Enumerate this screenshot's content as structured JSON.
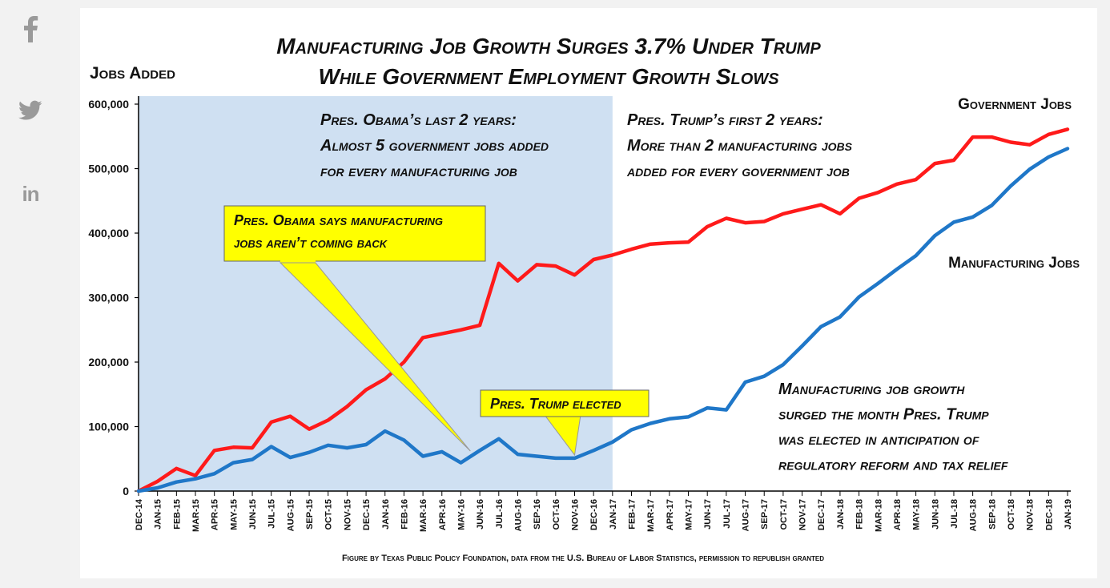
{
  "share": {
    "facebook": {
      "label": "f",
      "icon": "facebook-icon"
    },
    "twitter": {
      "icon": "twitter-icon"
    },
    "linkedin": {
      "label": "in",
      "icon": "linkedin-icon"
    }
  },
  "colors": {
    "government": "#ff1a1a",
    "manufacturing": "#1f77c8",
    "obama_period": "#cfe0f2",
    "callout": "#ffff00"
  },
  "chart_data": {
    "type": "line",
    "title": "Manufacturing Job Growth Surges 3.7% Under Trump",
    "subtitle": "While Government Employment Growth Slows",
    "ylabel": "Jobs Added",
    "xlabel": "",
    "ylim": [
      0,
      600000
    ],
    "yticks": [
      0,
      100000,
      200000,
      300000,
      400000,
      500000,
      600000
    ],
    "ytick_labels": [
      "0",
      "100,000",
      "200,000",
      "300,000",
      "400,000",
      "500,000",
      "600,000"
    ],
    "grid": false,
    "legend": "inline-labels",
    "x": [
      "Dec-14",
      "Jan-15",
      "Feb-15",
      "Mar-15",
      "Apr-15",
      "May-15",
      "Jun-15",
      "Jul-15",
      "Aug-15",
      "Sep-15",
      "Oct-15",
      "Nov-15",
      "Dec-15",
      "Jan-16",
      "Feb-16",
      "Mar-16",
      "Apr-16",
      "May-16",
      "Jun-16",
      "Jul-16",
      "Aug-16",
      "Sep-16",
      "Oct-16",
      "Nov-16",
      "Dec-16",
      "Jan-17",
      "Feb-17",
      "Mar-17",
      "Apr-17",
      "May-17",
      "Jun-17",
      "Jul-17",
      "Aug-17",
      "Sep-17",
      "Oct-17",
      "Nov-17",
      "Dec-17",
      "Jan-18",
      "Feb-18",
      "Mar-18",
      "Apr-18",
      "May-18",
      "Jun-18",
      "Jul-18",
      "Aug-18",
      "Sep-18",
      "Oct-18",
      "Nov-18",
      "Dec-18",
      "Jan-19"
    ],
    "series": [
      {
        "name": "Government Jobs",
        "color": "#ff1a1a",
        "values": [
          0,
          15000,
          35000,
          24000,
          63000,
          68000,
          67000,
          107000,
          116000,
          96000,
          110000,
          131000,
          157000,
          174000,
          200000,
          238000,
          244000,
          250000,
          257000,
          353000,
          326000,
          351000,
          349000,
          335000,
          359000,
          366000,
          375000,
          383000,
          385000,
          386000,
          410000,
          423000,
          416000,
          418000,
          430000,
          437000,
          444000,
          430000,
          454000,
          463000,
          476000,
          483000,
          508000,
          513000,
          549000,
          549000,
          541000,
          537000,
          553000,
          561000
        ]
      },
      {
        "name": "Manufacturing Jobs",
        "color": "#1f77c8",
        "values": [
          0,
          5000,
          14000,
          19000,
          27000,
          44000,
          49000,
          69000,
          52000,
          60000,
          71000,
          67000,
          72000,
          93000,
          79000,
          54000,
          61000,
          44000,
          63000,
          81000,
          57000,
          54000,
          51000,
          51000,
          63000,
          76000,
          95000,
          105000,
          112000,
          115000,
          129000,
          126000,
          169000,
          178000,
          196000,
          225000,
          255000,
          270000,
          301000,
          322000,
          344000,
          365000,
          396000,
          417000,
          425000,
          443000,
          473000,
          499000,
          518000,
          531000
        ]
      }
    ],
    "series_labels": {
      "government": "Government Jobs",
      "manufacturing": "Manufacturing Jobs"
    },
    "shaded_region": {
      "from": "Dec-14",
      "to": "Jan-17"
    },
    "annotations": {
      "obama_period": [
        "Pres. Obama’s last 2 years:",
        "Almost 5 government  jobs added",
        "for every manufacturing  job"
      ],
      "trump_period": [
        "Pres. Trump’s first 2 years:",
        "More than 2 manufacturing  jobs",
        "added for every government  job"
      ],
      "obama_callout": [
        "Pres. Obama says manufacturing",
        "jobs aren’t coming back"
      ],
      "trump_callout": [
        "Pres. Trump elected"
      ],
      "surge_note": [
        "Manufacturing  job growth",
        "surged  the month Pres. Trump",
        "was elected in anticipation  of",
        "regulatory  reform and tax relief"
      ]
    },
    "source": "Figure by Texas Public Policy Foundation, data from the U.S. Bureau of Labor Statistics, permission to republish granted"
  }
}
